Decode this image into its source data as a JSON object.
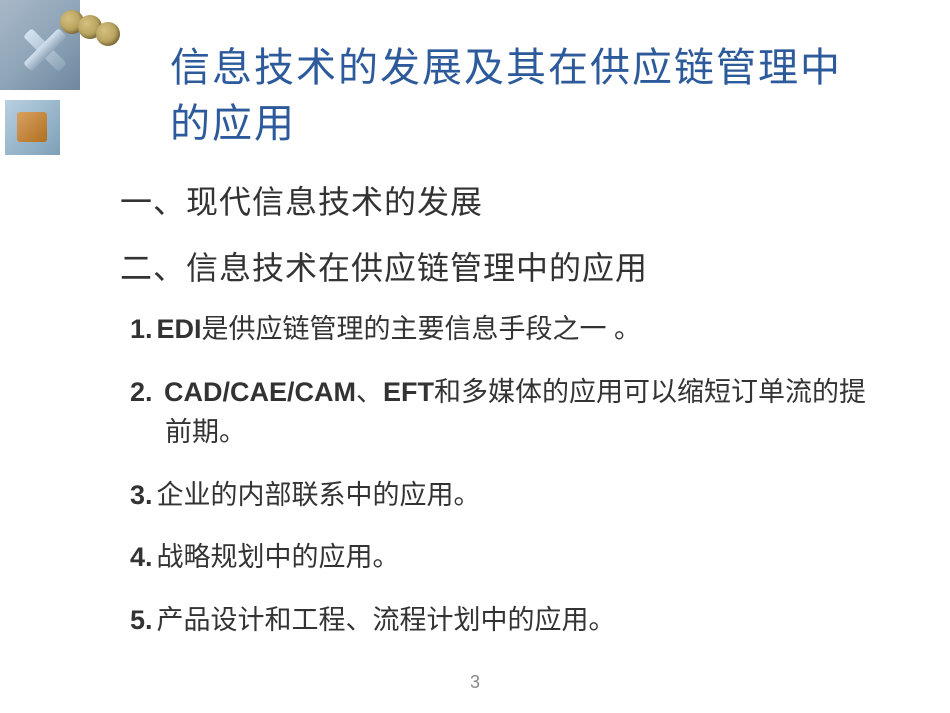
{
  "title_line1": "信息技术的发展及其在供应链管理中",
  "title_line2": "的应用",
  "section1": "一、现代信息技术的发展",
  "section2": "二、信息技术在供应链管理中的应用",
  "items": {
    "i1": {
      "num": "1.",
      "bold": "EDI",
      "text": "是供应链管理的主要信息手段之一 。"
    },
    "i2": {
      "num": "2.",
      "bold1": "CAD/CAE/CAM",
      "sep": "、",
      "bold2": "EFT",
      "text": "和多媒体的应用可以缩短订单流的提前期。"
    },
    "i3": {
      "num": "3.",
      "text": "企业的内部联系中的应用。"
    },
    "i4": {
      "num": "4.",
      "text": "战略规划中的应用。"
    },
    "i5": {
      "num": "5.",
      "text": "产品设计和工程、流程计划中的应用。"
    }
  },
  "page_number": "3",
  "colors": {
    "title": "#2d5a9a",
    "body_text": "#333333",
    "page_num": "#888888",
    "background": "#ffffff"
  },
  "fonts": {
    "title_size": 40,
    "section_size": 32,
    "item_size": 27
  }
}
